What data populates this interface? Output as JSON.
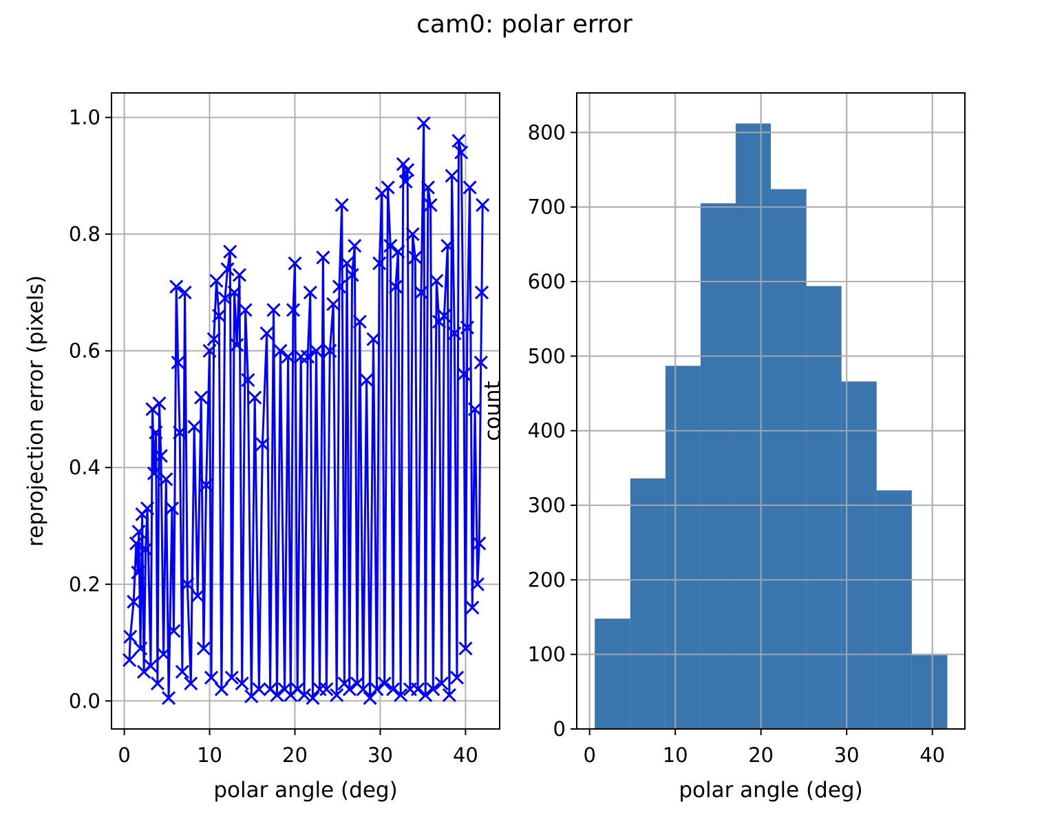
{
  "figure": {
    "suptitle": "cam0: polar error"
  },
  "colors": {
    "scatter_line": "#0000ff",
    "hist_bar": "#3a75ae",
    "grid": "#b0b0b0",
    "axes": "#000000"
  },
  "chart_data": [
    {
      "type": "line",
      "marker": "x",
      "title": "",
      "xlabel": "polar angle (deg)",
      "ylabel": "reprojection error (pixels)",
      "xlim": [
        -1.5,
        44
      ],
      "ylim": [
        -0.048,
        1.042
      ],
      "xticks": [
        0,
        10,
        20,
        30,
        40
      ],
      "yticks": [
        0.0,
        0.2,
        0.4,
        0.6,
        0.8,
        1.0
      ],
      "xtick_labels": [
        "0",
        "10",
        "20",
        "30",
        "40"
      ],
      "ytick_labels": [
        "0.0",
        "0.2",
        "0.4",
        "0.6",
        "0.8",
        "1.0"
      ],
      "grid": true,
      "series": [
        {
          "color": "#0000ff",
          "points": [
            [
              0.6,
              0.07
            ],
            [
              0.7,
              0.11
            ],
            [
              1.1,
              0.17
            ],
            [
              1.4,
              0.27
            ],
            [
              1.6,
              0.22
            ],
            [
              1.7,
              0.29
            ],
            [
              1.9,
              0.09
            ],
            [
              2.1,
              0.32
            ],
            [
              2.3,
              0.05
            ],
            [
              2.5,
              0.26
            ],
            [
              2.7,
              0.33
            ],
            [
              3.1,
              0.06
            ],
            [
              3.3,
              0.5
            ],
            [
              3.5,
              0.39
            ],
            [
              3.7,
              0.46
            ],
            [
              3.9,
              0.03
            ],
            [
              4.1,
              0.51
            ],
            [
              4.3,
              0.42
            ],
            [
              4.6,
              0.08
            ],
            [
              4.9,
              0.38
            ],
            [
              5.2,
              0.005
            ],
            [
              5.6,
              0.33
            ],
            [
              5.8,
              0.12
            ],
            [
              6.1,
              0.71
            ],
            [
              6.3,
              0.58
            ],
            [
              6.5,
              0.46
            ],
            [
              6.8,
              0.05
            ],
            [
              7.1,
              0.7
            ],
            [
              7.4,
              0.2
            ],
            [
              7.8,
              0.03
            ],
            [
              8.2,
              0.47
            ],
            [
              8.6,
              0.18
            ],
            [
              9.0,
              0.52
            ],
            [
              9.3,
              0.09
            ],
            [
              9.6,
              0.37
            ],
            [
              10.0,
              0.6
            ],
            [
              10.2,
              0.04
            ],
            [
              10.5,
              0.62
            ],
            [
              10.8,
              0.72
            ],
            [
              11.1,
              0.66
            ],
            [
              11.4,
              0.02
            ],
            [
              11.8,
              0.69
            ],
            [
              12.1,
              0.74
            ],
            [
              12.4,
              0.77
            ],
            [
              12.6,
              0.04
            ],
            [
              12.9,
              0.7
            ],
            [
              13.2,
              0.61
            ],
            [
              13.5,
              0.73
            ],
            [
              13.8,
              0.03
            ],
            [
              14.2,
              0.67
            ],
            [
              14.5,
              0.55
            ],
            [
              14.9,
              0.008
            ],
            [
              15.3,
              0.52
            ],
            [
              15.8,
              0.02
            ],
            [
              16.2,
              0.44
            ],
            [
              16.7,
              0.63
            ],
            [
              17.1,
              0.02
            ],
            [
              17.5,
              0.67
            ],
            [
              17.9,
              0.01
            ],
            [
              18.3,
              0.6
            ],
            [
              18.8,
              0.02
            ],
            [
              19.2,
              0.59
            ],
            [
              19.5,
              0.01
            ],
            [
              19.8,
              0.67
            ],
            [
              20.0,
              0.75
            ],
            [
              20.3,
              0.02
            ],
            [
              20.7,
              0.59
            ],
            [
              21.1,
              0.01
            ],
            [
              21.5,
              0.59
            ],
            [
              21.8,
              0.7
            ],
            [
              22.1,
              0.005
            ],
            [
              22.5,
              0.6
            ],
            [
              22.9,
              0.02
            ],
            [
              23.3,
              0.76
            ],
            [
              23.7,
              0.02
            ],
            [
              24.1,
              0.6
            ],
            [
              24.5,
              0.68
            ],
            [
              24.9,
              0.01
            ],
            [
              25.2,
              0.71
            ],
            [
              25.5,
              0.85
            ],
            [
              25.8,
              0.03
            ],
            [
              26.1,
              0.75
            ],
            [
              26.4,
              0.02
            ],
            [
              26.7,
              0.73
            ],
            [
              27.0,
              0.78
            ],
            [
              27.3,
              0.03
            ],
            [
              27.6,
              0.65
            ],
            [
              28.0,
              0.02
            ],
            [
              28.4,
              0.55
            ],
            [
              28.8,
              0.005
            ],
            [
              29.2,
              0.62
            ],
            [
              29.6,
              0.02
            ],
            [
              29.9,
              0.75
            ],
            [
              30.2,
              0.87
            ],
            [
              30.5,
              0.03
            ],
            [
              30.9,
              0.88
            ],
            [
              31.2,
              0.78
            ],
            [
              31.5,
              0.02
            ],
            [
              31.8,
              0.71
            ],
            [
              32.1,
              0.77
            ],
            [
              32.4,
              0.01
            ],
            [
              32.7,
              0.92
            ],
            [
              33.0,
              0.89
            ],
            [
              33.2,
              0.91
            ],
            [
              33.5,
              0.02
            ],
            [
              33.8,
              0.8
            ],
            [
              34.1,
              0.76
            ],
            [
              34.4,
              0.02
            ],
            [
              34.8,
              0.7
            ],
            [
              35.1,
              0.99
            ],
            [
              35.3,
              0.01
            ],
            [
              35.6,
              0.88
            ],
            [
              35.9,
              0.85
            ],
            [
              36.2,
              0.02
            ],
            [
              36.6,
              0.72
            ],
            [
              36.9,
              0.65
            ],
            [
              37.2,
              0.03
            ],
            [
              37.5,
              0.66
            ],
            [
              37.9,
              0.78
            ],
            [
              38.1,
              0.01
            ],
            [
              38.4,
              0.9
            ],
            [
              38.7,
              0.63
            ],
            [
              39.0,
              0.04
            ],
            [
              39.2,
              0.96
            ],
            [
              39.5,
              0.94
            ],
            [
              39.8,
              0.56
            ],
            [
              40.0,
              0.09
            ],
            [
              40.2,
              0.64
            ],
            [
              40.5,
              0.88
            ],
            [
              40.8,
              0.16
            ],
            [
              41.1,
              0.5
            ],
            [
              41.4,
              0.2
            ],
            [
              41.6,
              0.27
            ],
            [
              41.8,
              0.58
            ],
            [
              41.9,
              0.7
            ],
            [
              42.0,
              0.85
            ]
          ]
        }
      ]
    },
    {
      "type": "bar",
      "subtype": "histogram",
      "title": "",
      "xlabel": "polar angle (deg)",
      "ylabel": "count",
      "xlim": [
        -1.5,
        43.8
      ],
      "ylim": [
        0,
        853
      ],
      "xticks": [
        0,
        10,
        20,
        30,
        40
      ],
      "yticks": [
        0,
        100,
        200,
        300,
        400,
        500,
        600,
        700,
        800
      ],
      "xtick_labels": [
        "0",
        "10",
        "20",
        "30",
        "40"
      ],
      "ytick_labels": [
        "0",
        "100",
        "200",
        "300",
        "400",
        "500",
        "600",
        "700",
        "800"
      ],
      "grid": true,
      "bin_edges": [
        0.6,
        4.75,
        8.85,
        12.95,
        17.05,
        21.15,
        25.3,
        29.4,
        33.5,
        37.6,
        41.75
      ],
      "values": [
        148,
        336,
        487,
        705,
        812,
        724,
        594,
        466,
        320,
        99
      ]
    }
  ]
}
